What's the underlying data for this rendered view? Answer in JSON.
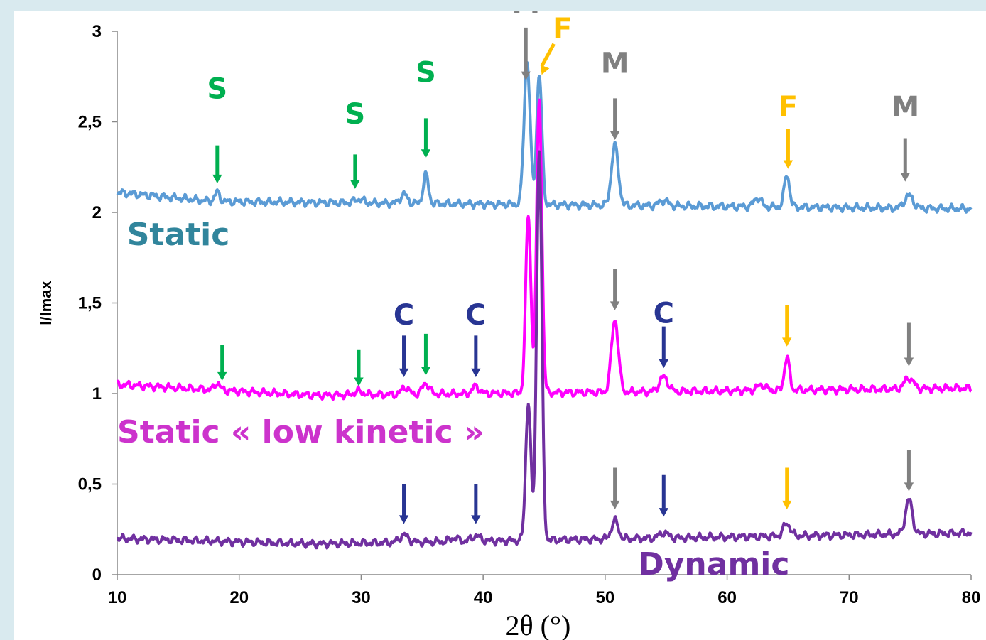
{
  "chart_data": {
    "type": "line",
    "xlabel": "2θ (°)",
    "ylabel": "I/Imax",
    "xlim": [
      10,
      80
    ],
    "ylim": [
      0,
      3
    ],
    "xticks": [
      10,
      20,
      30,
      40,
      50,
      60,
      70,
      80
    ],
    "xtick_labels": [
      "10",
      "20",
      "30",
      "40",
      "50",
      "60",
      "70",
      "80"
    ],
    "yticks": [
      0,
      0.5,
      1,
      1.5,
      2,
      2.5,
      3
    ],
    "ytick_labels": [
      "0",
      "0,5",
      "1",
      "1,5",
      "2",
      "2,5",
      "3"
    ],
    "grid": false,
    "series": [
      {
        "name": "Static",
        "color": "#5b9bd5",
        "label_color": "#31859c",
        "baseline": 2.05,
        "peaks": [
          {
            "x": 18.2,
            "h": 0.05,
            "w": 0.3
          },
          {
            "x": 29.8,
            "h": 0.02,
            "w": 0.5
          },
          {
            "x": 33.5,
            "h": 0.05,
            "w": 0.4
          },
          {
            "x": 35.3,
            "h": 0.16,
            "w": 0.3
          },
          {
            "x": 43.6,
            "h": 0.79,
            "w": 0.35
          },
          {
            "x": 44.6,
            "h": 0.72,
            "w": 0.3
          },
          {
            "x": 50.8,
            "h": 0.33,
            "w": 0.4
          },
          {
            "x": 54.8,
            "h": 0.03,
            "w": 0.5
          },
          {
            "x": 62.5,
            "h": 0.05,
            "w": 0.4
          },
          {
            "x": 64.9,
            "h": 0.18,
            "w": 0.3
          },
          {
            "x": 74.9,
            "h": 0.07,
            "w": 0.5
          }
        ],
        "slope": [
          {
            "x": 10,
            "y": 2.11
          },
          {
            "x": 18,
            "y": 2.06
          },
          {
            "x": 80,
            "y": 2.02
          }
        ]
      },
      {
        "name": "Static « low kinetic »",
        "color": "#ff00ff",
        "label_color": "#cc33cc",
        "baseline": 1.02,
        "peaks": [
          {
            "x": 18.2,
            "h": 0.04,
            "w": 0.3
          },
          {
            "x": 29.8,
            "h": 0.02,
            "w": 0.5
          },
          {
            "x": 33.6,
            "h": 0.04,
            "w": 0.4
          },
          {
            "x": 35.3,
            "h": 0.06,
            "w": 0.4
          },
          {
            "x": 39.4,
            "h": 0.04,
            "w": 0.4
          },
          {
            "x": 43.7,
            "h": 0.98,
            "w": 0.3
          },
          {
            "x": 44.6,
            "h": 1.62,
            "w": 0.3
          },
          {
            "x": 50.8,
            "h": 0.4,
            "w": 0.4
          },
          {
            "x": 54.8,
            "h": 0.08,
            "w": 0.5
          },
          {
            "x": 62.8,
            "h": 0.03,
            "w": 0.5
          },
          {
            "x": 64.9,
            "h": 0.18,
            "w": 0.3
          },
          {
            "x": 74.9,
            "h": 0.06,
            "w": 0.5
          }
        ],
        "slope": [
          {
            "x": 10,
            "y": 1.05
          },
          {
            "x": 26,
            "y": 0.99
          },
          {
            "x": 80,
            "y": 1.03
          }
        ]
      },
      {
        "name": "Dynamic",
        "color": "#7030a0",
        "label_color": "#7030a0",
        "baseline": 0.21,
        "peaks": [
          {
            "x": 33.5,
            "h": 0.04,
            "w": 0.5
          },
          {
            "x": 37.6,
            "h": 0.02,
            "w": 0.5
          },
          {
            "x": 39.4,
            "h": 0.03,
            "w": 0.5
          },
          {
            "x": 43.7,
            "h": 0.76,
            "w": 0.3
          },
          {
            "x": 44.6,
            "h": 2.15,
            "w": 0.3
          },
          {
            "x": 50.8,
            "h": 0.1,
            "w": 0.4
          },
          {
            "x": 54.8,
            "h": 0.03,
            "w": 0.5
          },
          {
            "x": 64.9,
            "h": 0.07,
            "w": 0.4
          },
          {
            "x": 74.9,
            "h": 0.19,
            "w": 0.4
          }
        ],
        "slope": [
          {
            "x": 10,
            "y": 0.2
          },
          {
            "x": 26,
            "y": 0.17
          },
          {
            "x": 80,
            "y": 0.23
          }
        ]
      }
    ],
    "annotations": [
      {
        "text": "S",
        "color": "#00b050",
        "x": 18.2,
        "y": 2.63,
        "arrow_from": 2.37,
        "arrow_to": 2.16
      },
      {
        "text": "S",
        "color": "#00b050",
        "x": 29.5,
        "y": 2.49,
        "arrow_from": 2.32,
        "arrow_to": 2.13
      },
      {
        "text": "S",
        "color": "#00b050",
        "x": 35.3,
        "y": 2.72,
        "arrow_from": 2.52,
        "arrow_to": 2.3
      },
      {
        "text": "M",
        "color": "#808080",
        "x": 43.5,
        "y": 3.1,
        "arrow_from": 3.02,
        "arrow_to": 2.73
      },
      {
        "text": "F",
        "color": "#ffc000",
        "x": 46.5,
        "y": 2.96,
        "arrow_from": 2.93,
        "arrow_to": 2.76,
        "arrow_dx": -1.0
      },
      {
        "text": "M",
        "color": "#808080",
        "x": 50.8,
        "y": 2.77,
        "arrow_from": 2.63,
        "arrow_to": 2.4
      },
      {
        "text": "F",
        "color": "#ffc000",
        "x": 65.0,
        "y": 2.53,
        "arrow_from": 2.46,
        "arrow_to": 2.24
      },
      {
        "text": "M",
        "color": "#808080",
        "x": 74.6,
        "y": 2.53,
        "arrow_from": 2.41,
        "arrow_to": 2.17
      },
      {
        "text": "",
        "color": "#00b050",
        "x": 18.6,
        "y": 0,
        "arrow_from": 1.27,
        "arrow_to": 1.07
      },
      {
        "text": "",
        "color": "#00b050",
        "x": 29.8,
        "y": 0,
        "arrow_from": 1.24,
        "arrow_to": 1.04
      },
      {
        "text": "C",
        "color": "#283593",
        "x": 33.5,
        "y": 1.38,
        "arrow_from": 1.32,
        "arrow_to": 1.09
      },
      {
        "text": "",
        "color": "#00b050",
        "x": 35.3,
        "y": 0,
        "arrow_from": 1.33,
        "arrow_to": 1.1
      },
      {
        "text": "C",
        "color": "#283593",
        "x": 39.4,
        "y": 1.38,
        "arrow_from": 1.32,
        "arrow_to": 1.09
      },
      {
        "text": "",
        "color": "#808080",
        "x": 50.8,
        "y": 0,
        "arrow_from": 1.69,
        "arrow_to": 1.46
      },
      {
        "text": "C",
        "color": "#283593",
        "x": 54.8,
        "y": 1.39,
        "arrow_from": 1.37,
        "arrow_to": 1.14
      },
      {
        "text": "",
        "color": "#ffc000",
        "x": 64.9,
        "y": 0,
        "arrow_from": 1.49,
        "arrow_to": 1.26
      },
      {
        "text": "",
        "color": "#808080",
        "x": 74.9,
        "y": 0,
        "arrow_from": 1.39,
        "arrow_to": 1.15
      },
      {
        "text": "",
        "color": "#283593",
        "x": 33.5,
        "y": 0,
        "arrow_from": 0.5,
        "arrow_to": 0.28
      },
      {
        "text": "",
        "color": "#283593",
        "x": 39.4,
        "y": 0,
        "arrow_from": 0.5,
        "arrow_to": 0.28
      },
      {
        "text": "",
        "color": "#808080",
        "x": 50.8,
        "y": 0,
        "arrow_from": 0.59,
        "arrow_to": 0.36
      },
      {
        "text": "",
        "color": "#283593",
        "x": 54.8,
        "y": 0,
        "arrow_from": 0.55,
        "arrow_to": 0.32
      },
      {
        "text": "",
        "color": "#ffc000",
        "x": 64.9,
        "y": 0,
        "arrow_from": 0.59,
        "arrow_to": 0.36
      },
      {
        "text": "",
        "color": "#808080",
        "x": 74.9,
        "y": 0,
        "arrow_from": 0.69,
        "arrow_to": 0.46
      }
    ],
    "series_labels": [
      {
        "text": "Static",
        "color": "#31859c",
        "x": 10.8,
        "y": 1.82
      },
      {
        "text": "Static « low kinetic »",
        "color": "#cc33cc",
        "x": 10.0,
        "y": 0.73
      },
      {
        "text": "Dynamic",
        "color": "#7030a0",
        "x": 52.7,
        "y": 0.0
      }
    ]
  }
}
